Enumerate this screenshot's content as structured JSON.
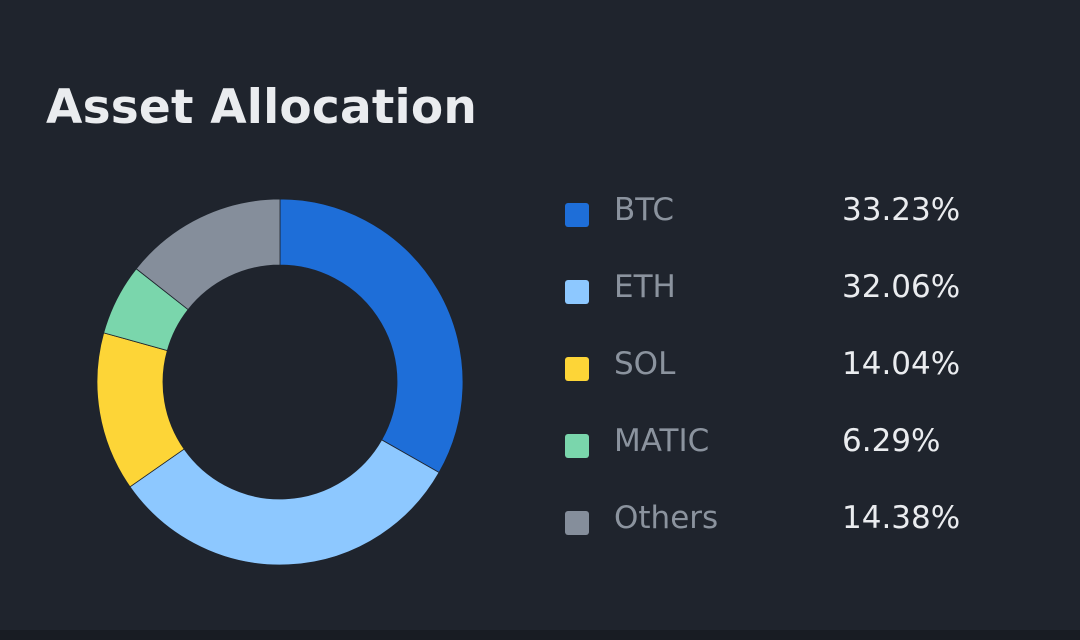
{
  "card": {
    "title": "Asset Allocation"
  },
  "colors": {
    "background": "#1f242d",
    "bottom_strip": "#181c23",
    "title_text": "#eaecef",
    "label_text": "#8b939e",
    "value_text": "#eaecef"
  },
  "chart_data": {
    "type": "pie",
    "variant": "donut",
    "title": "Asset Allocation",
    "legend_placement": "right",
    "slices": [
      {
        "label": "BTC",
        "value": 33.23,
        "display": "33.23%",
        "color": "#1e6ed8"
      },
      {
        "label": "ETH",
        "value": 32.06,
        "display": "32.06%",
        "color": "#8dc8ff"
      },
      {
        "label": "SOL",
        "value": 14.04,
        "display": "14.04%",
        "color": "#fdd537"
      },
      {
        "label": "MATIC",
        "value": 6.29,
        "display": "6.29%",
        "color": "#7ad6ac"
      },
      {
        "label": "Others",
        "value": 14.38,
        "display": "14.38%",
        "color": "#858e9b"
      }
    ]
  }
}
